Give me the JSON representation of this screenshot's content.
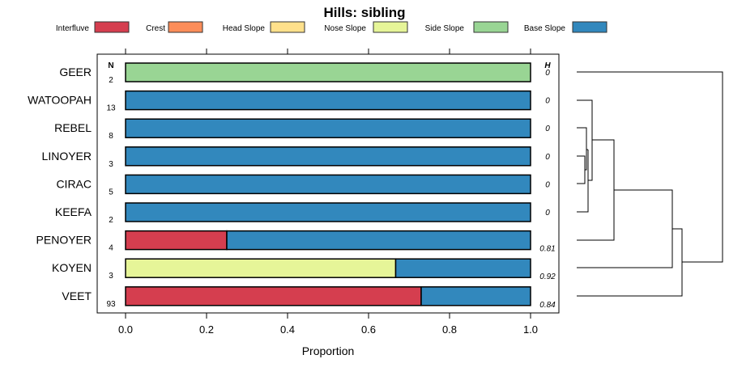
{
  "chart_data": {
    "type": "bar",
    "orientation": "horizontal-stacked",
    "title": "Hills: sibling",
    "xlabel": "Proportion",
    "xlim": [
      0,
      1
    ],
    "xticks": [
      "0.0",
      "0.2",
      "0.4",
      "0.6",
      "0.8",
      "1.0"
    ],
    "legend": [
      {
        "name": "Interfluve",
        "color": "#D53E4F"
      },
      {
        "name": "Crest",
        "color": "#FC8D59"
      },
      {
        "name": "Head Slope",
        "color": "#FEE08B"
      },
      {
        "name": "Nose Slope",
        "color": "#E6F598"
      },
      {
        "name": "Side Slope",
        "color": "#99D594"
      },
      {
        "name": "Base Slope",
        "color": "#3288BD"
      }
    ],
    "n_header": "N",
    "h_header": "H",
    "categories": [
      "GEER",
      "WATOOPAH",
      "REBEL",
      "LINOYER",
      "CIRAC",
      "KEEFA",
      "PENOYER",
      "KOYEN",
      "VEET"
    ],
    "n": [
      "2",
      "13",
      "8",
      "3",
      "5",
      "2",
      "4",
      "3",
      "93"
    ],
    "h": [
      "0",
      "0",
      "0",
      "0",
      "0",
      "0",
      "0.81",
      "0.92",
      "0.84"
    ],
    "series": [
      {
        "name": "Interfluve",
        "values": [
          0,
          0,
          0,
          0,
          0,
          0,
          0.25,
          0,
          0.73
        ]
      },
      {
        "name": "Crest",
        "values": [
          0,
          0,
          0,
          0,
          0,
          0,
          0,
          0,
          0
        ]
      },
      {
        "name": "Head Slope",
        "values": [
          0,
          0,
          0,
          0,
          0,
          0,
          0,
          0,
          0
        ]
      },
      {
        "name": "Nose Slope",
        "values": [
          0,
          0,
          0,
          0,
          0,
          0,
          0,
          0.667,
          0
        ]
      },
      {
        "name": "Side Slope",
        "values": [
          1,
          0,
          0,
          0,
          0,
          0,
          0,
          0,
          0
        ]
      },
      {
        "name": "Base Slope",
        "values": [
          0,
          1,
          1,
          1,
          1,
          1,
          0.75,
          0.333,
          0.27
        ]
      }
    ]
  }
}
